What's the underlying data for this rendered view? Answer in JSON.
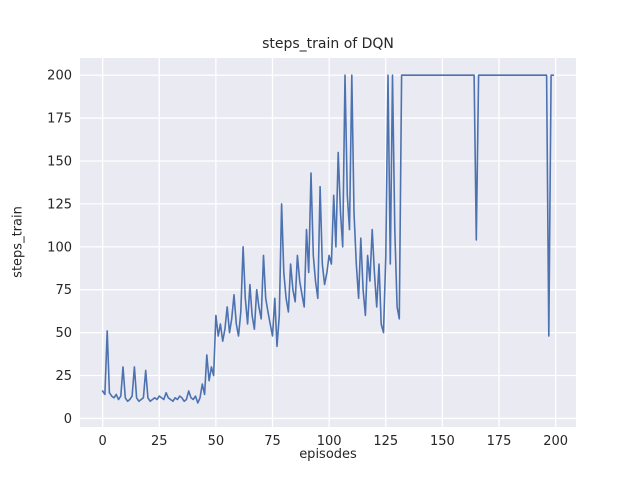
{
  "figure": {
    "title": "steps_train of DQN",
    "xlabel": "episodes",
    "ylabel": "steps_train"
  },
  "chart_data": {
    "type": "line",
    "title": "steps_train of DQN",
    "xlabel": "episodes",
    "ylabel": "steps_train",
    "legend": "none",
    "grid": true,
    "style": "seaborn-darkgrid",
    "axes_bg": "#eaeaf2",
    "grid_color": "#ffffff",
    "line_color": "#4c72b0",
    "text_color": "#262626",
    "xlim": [
      -10,
      209
    ],
    "ylim": [
      -5,
      210
    ],
    "xticks": [
      0,
      25,
      50,
      75,
      100,
      125,
      150,
      175,
      200
    ],
    "yticks": [
      0,
      25,
      50,
      75,
      100,
      125,
      150,
      175,
      200
    ],
    "series": [
      {
        "name": "steps_train",
        "x_start": 0,
        "x_step": 1,
        "values": [
          16,
          14,
          51,
          15,
          13,
          12,
          14,
          11,
          13,
          30,
          12,
          10,
          11,
          13,
          30,
          12,
          10,
          11,
          12,
          28,
          12,
          10,
          11,
          12,
          11,
          13,
          12,
          11,
          15,
          12,
          11,
          10,
          12,
          11,
          13,
          12,
          10,
          11,
          16,
          12,
          11,
          13,
          9,
          12,
          20,
          14,
          37,
          22,
          30,
          25,
          60,
          48,
          55,
          45,
          52,
          65,
          50,
          58,
          72,
          55,
          48,
          62,
          100,
          70,
          55,
          78,
          60,
          52,
          75,
          65,
          58,
          95,
          70,
          62,
          55,
          48,
          70,
          42,
          60,
          125,
          85,
          70,
          62,
          90,
          75,
          68,
          95,
          80,
          72,
          65,
          110,
          85,
          143,
          95,
          80,
          70,
          135,
          90,
          78,
          85,
          95,
          90,
          130,
          100,
          155,
          120,
          100,
          200,
          130,
          110,
          200,
          120,
          90,
          70,
          105,
          75,
          60,
          95,
          80,
          110,
          85,
          65,
          90,
          55,
          50,
          95,
          200,
          90,
          200,
          110,
          65,
          58,
          200,
          200,
          200,
          200,
          200,
          200,
          200,
          200,
          200,
          200,
          200,
          200,
          200,
          200,
          200,
          200,
          200,
          200,
          200,
          200,
          200,
          200,
          200,
          200,
          200,
          200,
          200,
          200,
          200,
          200,
          200,
          200,
          200,
          104,
          200,
          200,
          200,
          200,
          200,
          200,
          200,
          200,
          200,
          200,
          200,
          200,
          200,
          200,
          200,
          200,
          200,
          200,
          200,
          200,
          200,
          200,
          200,
          200,
          200,
          200,
          200,
          200,
          200,
          200,
          200,
          48,
          200,
          200
        ]
      }
    ]
  }
}
